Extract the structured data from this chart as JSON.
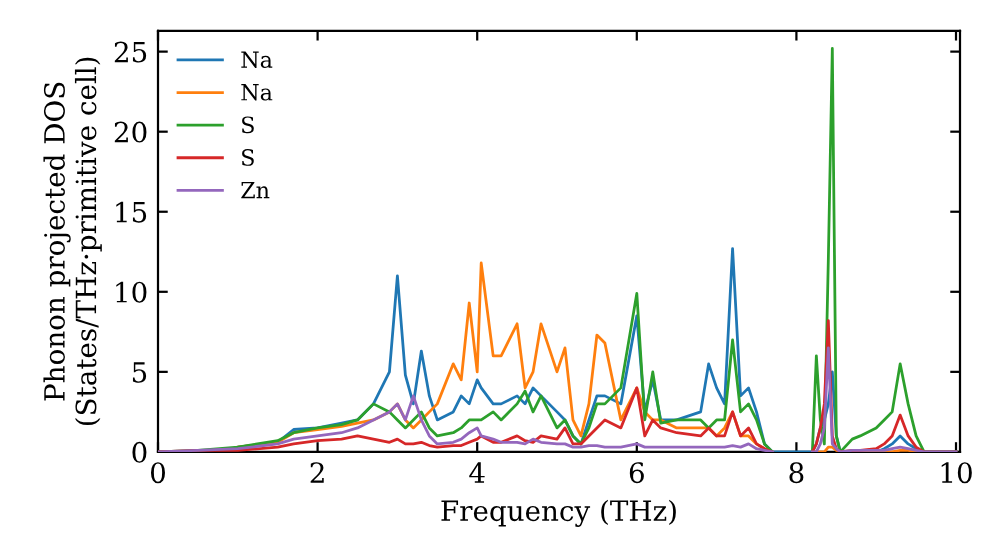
{
  "chart_data": {
    "type": "line",
    "xlabel": "Frequency (THz)",
    "ylabel": "Phonon projected DOS\n(States/THz·primitive cell)",
    "x": [
      0,
      0.5,
      1.0,
      1.5,
      1.7,
      2.0,
      2.3,
      2.5,
      2.7,
      2.9,
      3.0,
      3.1,
      3.2,
      3.3,
      3.4,
      3.5,
      3.7,
      3.8,
      3.9,
      4.0,
      4.05,
      4.2,
      4.3,
      4.5,
      4.6,
      4.7,
      4.8,
      5.0,
      5.1,
      5.2,
      5.3,
      5.4,
      5.5,
      5.6,
      5.8,
      6.0,
      6.1,
      6.2,
      6.3,
      6.5,
      6.8,
      6.9,
      7.0,
      7.1,
      7.2,
      7.3,
      7.4,
      7.5,
      7.6,
      7.7,
      8.0,
      8.2,
      8.25,
      8.3,
      8.35,
      8.4,
      8.45,
      8.5,
      8.55,
      8.7,
      8.8,
      9.0,
      9.1,
      9.2,
      9.3,
      9.4,
      9.5,
      9.6,
      10.0
    ],
    "series": [
      {
        "name": "Na",
        "color": "#1f77b4",
        "values": [
          null,
          null,
          0.3,
          0.6,
          1.4,
          1.5,
          1.8,
          2.0,
          3.0,
          5.0,
          11.0,
          4.8,
          3.0,
          6.3,
          3.5,
          2.0,
          2.5,
          3.5,
          3.0,
          4.5,
          4.0,
          3.0,
          3.0,
          3.5,
          3.0,
          4.0,
          3.5,
          2.5,
          2.0,
          1.0,
          0.5,
          2.0,
          3.5,
          3.5,
          3.0,
          8.5,
          2.5,
          4.5,
          2.0,
          2.0,
          2.5,
          5.5,
          4.0,
          3.0,
          12.7,
          3.5,
          4.0,
          2.5,
          0.5,
          0,
          0,
          0,
          0.5,
          1.5,
          2.0,
          3.0,
          5.0,
          1.0,
          0,
          0,
          0,
          0,
          0.2,
          0.5,
          1.0,
          0.5,
          0.2,
          0,
          0
        ]
      },
      {
        "name": "Na",
        "color": "#ff7f0e",
        "values": [
          null,
          null,
          0.3,
          0.6,
          1.2,
          1.4,
          1.6,
          1.8,
          2.0,
          2.5,
          3.0,
          2.0,
          1.5,
          2.0,
          2.5,
          3.0,
          5.5,
          4.5,
          9.3,
          5.0,
          11.8,
          6.0,
          6.0,
          8.0,
          4.0,
          5.0,
          8.0,
          5.0,
          6.5,
          2.0,
          1.0,
          3.0,
          7.3,
          6.8,
          2.0,
          4.0,
          2.5,
          2.0,
          2.0,
          1.5,
          1.5,
          1.5,
          1.0,
          1.5,
          2.5,
          1.0,
          1.0,
          0.5,
          0.2,
          0,
          null,
          0,
          0,
          0,
          0,
          0.3,
          0.3,
          0.1,
          0,
          0,
          0,
          0,
          0,
          0,
          0.1,
          0.1,
          0,
          null,
          null
        ]
      },
      {
        "name": "S",
        "color": "#2ca02c",
        "values": [
          0,
          0.1,
          0.3,
          0.7,
          1.2,
          1.5,
          1.7,
          2.0,
          3.0,
          2.5,
          2.0,
          1.5,
          2.0,
          2.5,
          1.5,
          1.0,
          1.2,
          1.5,
          2.0,
          2.0,
          2.0,
          2.5,
          2.0,
          3.0,
          3.8,
          2.5,
          3.5,
          1.5,
          2.0,
          1.0,
          0.5,
          1.5,
          3.0,
          3.0,
          4.0,
          9.9,
          2.0,
          5.0,
          1.8,
          2.0,
          2.0,
          1.5,
          2.0,
          2.0,
          7.0,
          2.5,
          3.0,
          2.0,
          0.5,
          0,
          null,
          0,
          6.0,
          2.0,
          0.5,
          12.0,
          25.2,
          1.0,
          0,
          0.8,
          1.0,
          1.5,
          2.0,
          2.5,
          5.5,
          3.0,
          1.0,
          0,
          0
        ]
      },
      {
        "name": "S",
        "color": "#d62728",
        "values": [
          0,
          0.1,
          0.1,
          0.3,
          0.5,
          0.7,
          0.8,
          1.0,
          0.8,
          0.6,
          0.8,
          0.5,
          0.5,
          0.6,
          0.4,
          0.3,
          0.4,
          0.4,
          0.6,
          0.8,
          1.0,
          0.6,
          0.6,
          1.0,
          0.7,
          0.6,
          1.0,
          0.8,
          1.5,
          0.5,
          0.5,
          1.0,
          1.5,
          2.0,
          1.5,
          4.0,
          1.0,
          2.0,
          1.5,
          1.2,
          1.0,
          1.5,
          1.0,
          1.0,
          2.5,
          1.0,
          1.5,
          0.5,
          0.2,
          0,
          null,
          0,
          0.5,
          1.5,
          3.0,
          8.2,
          1.0,
          0.2,
          0,
          0.1,
          0.1,
          0.2,
          0.5,
          1.0,
          2.3,
          1.0,
          0.3,
          0,
          0
        ]
      },
      {
        "name": "Zn",
        "color": "#9467bd",
        "values": [
          0,
          0.1,
          0.2,
          0.5,
          0.8,
          1.0,
          1.2,
          1.5,
          2.0,
          2.5,
          3.0,
          2.0,
          3.5,
          2.0,
          1.0,
          0.5,
          0.6,
          0.8,
          1.2,
          1.5,
          1.0,
          0.8,
          0.6,
          0.6,
          0.5,
          0.8,
          0.6,
          0.5,
          0.5,
          0.3,
          0.3,
          0.4,
          0.4,
          0.3,
          0.3,
          0.5,
          0.3,
          0.3,
          0.3,
          0.3,
          0.3,
          0.3,
          0.3,
          0.3,
          0.4,
          0.3,
          0.5,
          0.2,
          0.1,
          0,
          null,
          0,
          0,
          0.5,
          1.5,
          6.5,
          0.5,
          0.2,
          0,
          0.1,
          0.1,
          0.1,
          0.1,
          0.2,
          0.3,
          0.2,
          0.1,
          0,
          0
        ]
      }
    ],
    "xlim": [
      0,
      10.05
    ],
    "ylim": [
      0,
      26.3
    ],
    "xticks": [
      0,
      2,
      4,
      6,
      8,
      10
    ],
    "yticks": [
      0,
      5,
      10,
      15,
      20,
      25
    ],
    "legend": "top left",
    "grid": false,
    "marker": "none",
    "line_style": "solid"
  }
}
